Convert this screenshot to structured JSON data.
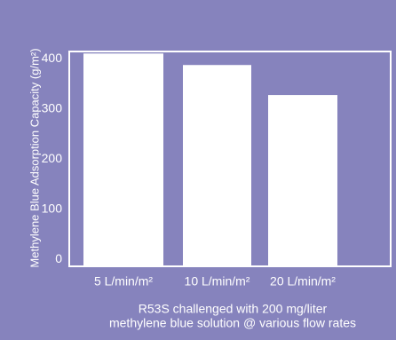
{
  "chart_data": {
    "type": "bar",
    "y_label": "Methylene Blue Adsorption Capacity (g/m²)",
    "categories": [
      "5 L/min/m²",
      "10 L/min/m²",
      "20 L/min/m²"
    ],
    "values": [
      411,
      388,
      328
    ],
    "color": "#ffffff",
    "ylim": [
      -14,
      415
    ],
    "yticks": [
      0,
      100,
      200,
      300,
      400
    ],
    "caption": [
      "R53S challenged with 200 mg/liter",
      "methylene blue solution @ various flow rates"
    ]
  }
}
